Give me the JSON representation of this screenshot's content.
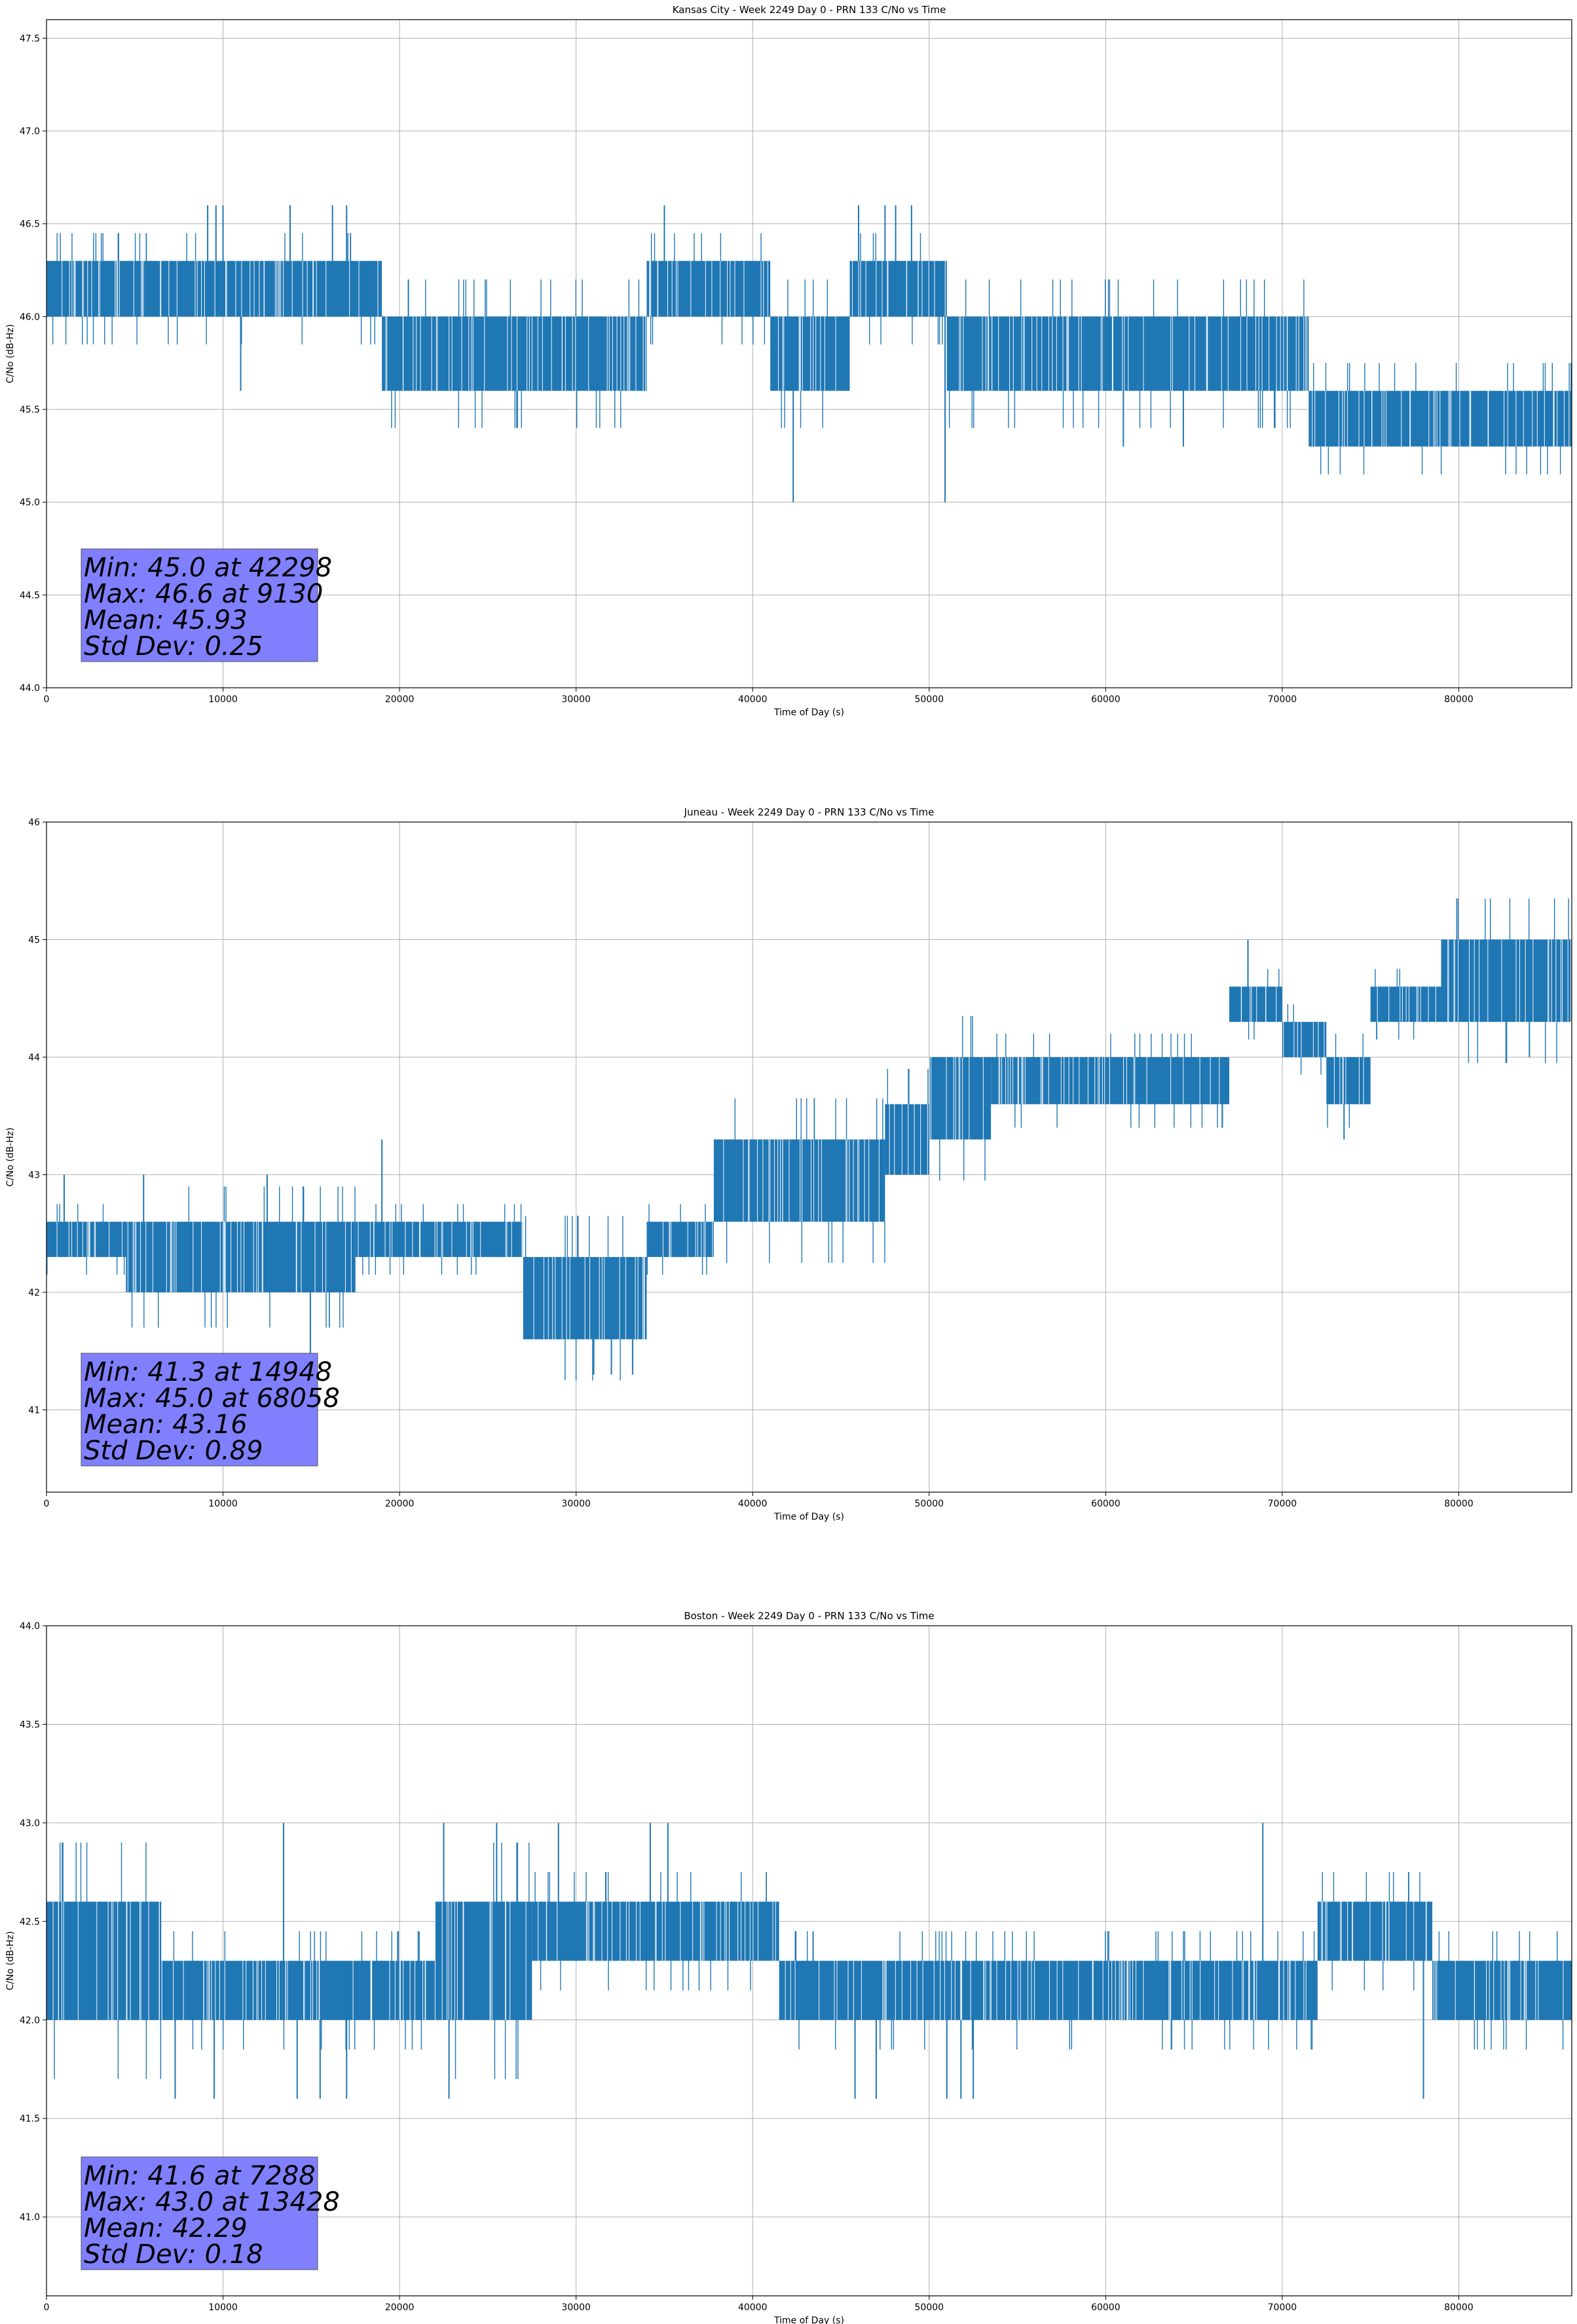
{
  "colors": {
    "series": "#1f77b4",
    "grid": "#b0b0b0",
    "stats_box_fill": "#8080ff",
    "axis": "#000000"
  },
  "chart_data": [
    {
      "type": "line",
      "title": "Kansas City - Week 2249 Day 0 - PRN 133 C/No vs Time",
      "xlabel": "Time of Day (s)",
      "ylabel": "C/No (dB-Hz)",
      "xlim": [
        0,
        86400
      ],
      "ylim": [
        44.0,
        47.6
      ],
      "xticks": [
        0,
        10000,
        20000,
        30000,
        40000,
        50000,
        60000,
        70000,
        80000
      ],
      "yticks": [
        44.0,
        44.5,
        45.0,
        45.5,
        46.0,
        46.5,
        47.0,
        47.5
      ],
      "ytick_decimals": 1,
      "grid": true,
      "legend": "none",
      "stats": {
        "lines": [
          "Min: 45.0 at 42298",
          "Max: 46.6 at 9130",
          "Mean: 45.93",
          "Std Dev: 0.25"
        ],
        "placement": "bottom-left"
      },
      "series": [
        {
          "segments": [
            {
              "x": [
                0,
                19000
              ],
              "low": 46.0,
              "high": 46.3
            },
            {
              "x": [
                19000,
                34000
              ],
              "low": 45.6,
              "high": 46.0
            },
            {
              "x": [
                34000,
                41000
              ],
              "low": 46.0,
              "high": 46.3
            },
            {
              "x": [
                41000,
                45500
              ],
              "low": 45.6,
              "high": 46.0
            },
            {
              "x": [
                45500,
                51000
              ],
              "low": 46.0,
              "high": 46.3
            },
            {
              "x": [
                51000,
                71500
              ],
              "low": 45.6,
              "high": 46.0
            },
            {
              "x": [
                71500,
                86400
              ],
              "low": 45.3,
              "high": 45.6
            }
          ],
          "spikes": [
            [
              42298,
              45.0
            ],
            [
              50900,
              45.0
            ],
            [
              9130,
              46.6
            ],
            [
              9600,
              46.6
            ],
            [
              10000,
              46.6
            ],
            [
              13800,
              46.6
            ],
            [
              16200,
              46.6
            ],
            [
              17000,
              46.6
            ],
            [
              35000,
              46.6
            ],
            [
              46000,
              46.6
            ],
            [
              47500,
              46.6
            ],
            [
              48100,
              46.6
            ],
            [
              49000,
              46.6
            ],
            [
              11000,
              45.6
            ],
            [
              20500,
              46.2
            ],
            [
              61000,
              45.3
            ],
            [
              64400,
              45.3
            ]
          ]
        }
      ]
    },
    {
      "type": "line",
      "title": "Juneau - Week 2249 Day 0 - PRN 133 C/No vs Time",
      "xlabel": "Time of Day (s)",
      "ylabel": "C/No (dB-Hz)",
      "xlim": [
        0,
        86400
      ],
      "ylim": [
        40.3,
        46.0
      ],
      "xticks": [
        0,
        10000,
        20000,
        30000,
        40000,
        50000,
        60000,
        70000,
        80000
      ],
      "yticks": [
        41,
        42,
        43,
        44,
        45,
        46
      ],
      "ytick_decimals": 0,
      "grid": true,
      "legend": "none",
      "stats": {
        "lines": [
          "Min: 41.3 at 14948",
          "Max: 45.0 at 68058",
          "Mean: 43.16",
          "Std Dev: 0.89"
        ],
        "placement": "bottom-left"
      },
      "series": [
        {
          "segments": [
            {
              "x": [
                0,
                4500
              ],
              "low": 42.3,
              "high": 42.6
            },
            {
              "x": [
                4500,
                17500
              ],
              "low": 42.0,
              "high": 42.6
            },
            {
              "x": [
                17500,
                27000
              ],
              "low": 42.3,
              "high": 42.6
            },
            {
              "x": [
                27000,
                34000
              ],
              "low": 41.6,
              "high": 42.3
            },
            {
              "x": [
                34000,
                37800
              ],
              "low": 42.3,
              "high": 42.6
            },
            {
              "x": [
                37800,
                47500
              ],
              "low": 42.6,
              "high": 43.3
            },
            {
              "x": [
                47500,
                50000
              ],
              "low": 43.0,
              "high": 43.6
            },
            {
              "x": [
                50000,
                53500
              ],
              "low": 43.3,
              "high": 44.0
            },
            {
              "x": [
                53500,
                67000
              ],
              "low": 43.6,
              "high": 44.0
            },
            {
              "x": [
                67000,
                70000
              ],
              "low": 44.3,
              "high": 44.6
            },
            {
              "x": [
                70000,
                72500
              ],
              "low": 44.0,
              "high": 44.3
            },
            {
              "x": [
                72500,
                75000
              ],
              "low": 43.6,
              "high": 44.0
            },
            {
              "x": [
                75000,
                79000
              ],
              "low": 44.3,
              "high": 44.6
            },
            {
              "x": [
                79000,
                86400
              ],
              "low": 44.3,
              "high": 45.0
            }
          ],
          "spikes": [
            [
              14948,
              41.3
            ],
            [
              31000,
              41.3
            ],
            [
              32000,
              41.3
            ],
            [
              33200,
              41.3
            ],
            [
              68058,
              45.0
            ],
            [
              19000,
              43.3
            ],
            [
              1000,
              43.0
            ],
            [
              5500,
              43.0
            ],
            [
              12500,
              43.0
            ],
            [
              73500,
              43.3
            ],
            [
              84000,
              44.0
            ]
          ]
        }
      ]
    },
    {
      "type": "line",
      "title": "Boston - Week 2249 Day 0 - PRN 133 C/No vs Time",
      "xlabel": "Time of Day (s)",
      "ylabel": "C/No (dB-Hz)",
      "xlim": [
        0,
        86400
      ],
      "ylim": [
        40.6,
        44.0
      ],
      "xticks": [
        0,
        10000,
        20000,
        30000,
        40000,
        50000,
        60000,
        70000,
        80000
      ],
      "yticks": [
        41.0,
        41.5,
        42.0,
        42.5,
        43.0,
        43.5,
        44.0
      ],
      "ytick_decimals": 1,
      "grid": true,
      "legend": "none",
      "stats": {
        "lines": [
          "Min: 41.6 at 7288",
          "Max: 43.0 at 13428",
          "Mean: 42.29",
          "Std Dev: 0.18"
        ],
        "placement": "bottom-left"
      },
      "series": [
        {
          "segments": [
            {
              "x": [
                0,
                6500
              ],
              "low": 42.0,
              "high": 42.6
            },
            {
              "x": [
                6500,
                22000
              ],
              "low": 42.0,
              "high": 42.3
            },
            {
              "x": [
                22000,
                27500
              ],
              "low": 42.0,
              "high": 42.6
            },
            {
              "x": [
                27500,
                41500
              ],
              "low": 42.3,
              "high": 42.6
            },
            {
              "x": [
                41500,
                72000
              ],
              "low": 42.0,
              "high": 42.3
            },
            {
              "x": [
                72000,
                78500
              ],
              "low": 42.3,
              "high": 42.6
            },
            {
              "x": [
                78500,
                86400
              ],
              "low": 42.0,
              "high": 42.3
            }
          ],
          "spikes": [
            [
              7288,
              41.6
            ],
            [
              9500,
              41.6
            ],
            [
              14200,
              41.6
            ],
            [
              15500,
              41.6
            ],
            [
              17000,
              41.6
            ],
            [
              22800,
              41.6
            ],
            [
              45800,
              41.6
            ],
            [
              47000,
              41.6
            ],
            [
              51000,
              41.6
            ],
            [
              51800,
              41.6
            ],
            [
              52500,
              41.6
            ],
            [
              78000,
              41.6
            ],
            [
              13428,
              43.0
            ],
            [
              22500,
              43.0
            ],
            [
              25500,
              43.0
            ],
            [
              29000,
              43.0
            ],
            [
              34200,
              43.0
            ],
            [
              35200,
              43.0
            ],
            [
              68900,
              43.0
            ]
          ]
        }
      ]
    }
  ]
}
